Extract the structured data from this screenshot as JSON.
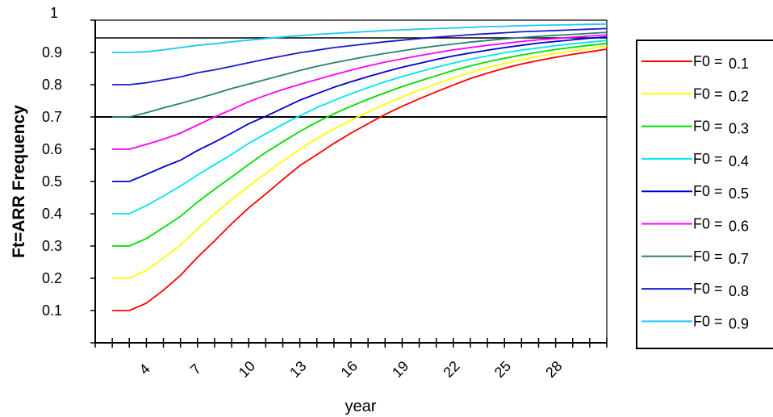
{
  "chart_data": {
    "type": "line",
    "title": "",
    "xlabel": "year",
    "ylabel": "Ft=ARR Frequency",
    "xlim": [
      1,
      31
    ],
    "ylim": [
      0,
      1
    ],
    "y_ticks": [
      "0.1",
      "0.2",
      "0.3",
      "0.4",
      "0.5",
      "0.6",
      "0.7",
      "0.8",
      "0.9",
      "1"
    ],
    "x_ticks": [
      "4",
      "7",
      "10",
      "13",
      "16",
      "19",
      "22",
      "25",
      "28"
    ],
    "x_tick_values": [
      4,
      7,
      10,
      13,
      16,
      19,
      22,
      25,
      28
    ],
    "reference_lines": [
      0.7,
      0.945
    ],
    "legend_position": "right",
    "x": [
      2,
      3,
      4,
      5,
      6,
      7,
      8,
      9,
      10,
      11,
      12,
      13,
      14,
      15,
      16,
      17,
      18,
      19,
      20,
      21,
      22,
      23,
      24,
      25,
      26,
      27,
      28,
      29,
      30,
      31
    ],
    "series": [
      {
        "name_prefix": "F0 =",
        "name_value": "0.1",
        "color": "#ff0000",
        "values": [
          0.1,
          0.1,
          0.123,
          0.163,
          0.209,
          0.265,
          0.316,
          0.369,
          0.418,
          0.461,
          0.506,
          0.549,
          0.583,
          0.618,
          0.65,
          0.679,
          0.708,
          0.733,
          0.756,
          0.778,
          0.799,
          0.819,
          0.836,
          0.851,
          0.864,
          0.875,
          0.885,
          0.894,
          0.902,
          0.91
        ]
      },
      {
        "name_prefix": "F0 =",
        "name_value": "0.2",
        "color": "#ffff00",
        "values": [
          0.2,
          0.2,
          0.224,
          0.262,
          0.303,
          0.353,
          0.4,
          0.444,
          0.485,
          0.525,
          0.563,
          0.6,
          0.633,
          0.663,
          0.69,
          0.715,
          0.74,
          0.762,
          0.783,
          0.802,
          0.821,
          0.838,
          0.853,
          0.866,
          0.878,
          0.888,
          0.897,
          0.905,
          0.912,
          0.92
        ]
      },
      {
        "name_prefix": "F0 =",
        "name_value": "0.3",
        "color": "#00dd00",
        "values": [
          0.3,
          0.3,
          0.323,
          0.357,
          0.392,
          0.436,
          0.476,
          0.514,
          0.553,
          0.59,
          0.623,
          0.655,
          0.684,
          0.71,
          0.733,
          0.755,
          0.775,
          0.794,
          0.811,
          0.828,
          0.844,
          0.858,
          0.871,
          0.882,
          0.892,
          0.901,
          0.909,
          0.916,
          0.922,
          0.928
        ]
      },
      {
        "name_prefix": "F0 =",
        "name_value": "0.4",
        "color": "#00e5ee",
        "values": [
          0.4,
          0.4,
          0.425,
          0.455,
          0.486,
          0.52,
          0.552,
          0.584,
          0.618,
          0.648,
          0.677,
          0.704,
          0.729,
          0.751,
          0.772,
          0.791,
          0.809,
          0.825,
          0.84,
          0.854,
          0.867,
          0.879,
          0.889,
          0.899,
          0.907,
          0.914,
          0.921,
          0.927,
          0.932,
          0.937
        ]
      },
      {
        "name_prefix": "F0 =",
        "name_value": "0.5",
        "color": "#0000cc",
        "values": [
          0.5,
          0.5,
          0.522,
          0.545,
          0.566,
          0.596,
          0.622,
          0.65,
          0.679,
          0.702,
          0.727,
          0.752,
          0.772,
          0.792,
          0.809,
          0.825,
          0.84,
          0.854,
          0.866,
          0.878,
          0.889,
          0.898,
          0.907,
          0.915,
          0.922,
          0.929,
          0.934,
          0.939,
          0.944,
          0.948
        ]
      },
      {
        "name_prefix": "F0 =",
        "name_value": "0.6",
        "color": "#ff00ff",
        "values": [
          0.6,
          0.6,
          0.615,
          0.631,
          0.65,
          0.675,
          0.7,
          0.723,
          0.747,
          0.767,
          0.785,
          0.801,
          0.816,
          0.831,
          0.845,
          0.858,
          0.87,
          0.88,
          0.89,
          0.899,
          0.908,
          0.915,
          0.922,
          0.928,
          0.934,
          0.939,
          0.943,
          0.947,
          0.951,
          0.954
        ]
      },
      {
        "name_prefix": "F0 =",
        "name_value": "0.7",
        "color": "#2a8070",
        "values": [
          0.7,
          0.7,
          0.713,
          0.728,
          0.742,
          0.757,
          0.772,
          0.788,
          0.802,
          0.816,
          0.83,
          0.844,
          0.857,
          0.868,
          0.878,
          0.888,
          0.897,
          0.905,
          0.913,
          0.92,
          0.926,
          0.932,
          0.937,
          0.942,
          0.946,
          0.95,
          0.953,
          0.956,
          0.959,
          0.962
        ]
      },
      {
        "name_prefix": "F0 =",
        "name_value": "0.8",
        "color": "#1a1acc",
        "values": [
          0.8,
          0.8,
          0.806,
          0.815,
          0.824,
          0.837,
          0.846,
          0.857,
          0.868,
          0.879,
          0.889,
          0.899,
          0.907,
          0.915,
          0.921,
          0.927,
          0.933,
          0.938,
          0.943,
          0.947,
          0.951,
          0.955,
          0.958,
          0.961,
          0.964,
          0.966,
          0.968,
          0.97,
          0.972,
          0.974
        ]
      },
      {
        "name_prefix": "F0 =",
        "name_value": "0.9",
        "color": "#1ec8f0",
        "values": [
          0.9,
          0.9,
          0.902,
          0.908,
          0.915,
          0.922,
          0.927,
          0.933,
          0.938,
          0.943,
          0.948,
          0.952,
          0.956,
          0.959,
          0.962,
          0.965,
          0.968,
          0.97,
          0.972,
          0.974,
          0.976,
          0.978,
          0.98,
          0.981,
          0.983,
          0.984,
          0.985,
          0.986,
          0.987,
          0.988
        ]
      }
    ]
  }
}
